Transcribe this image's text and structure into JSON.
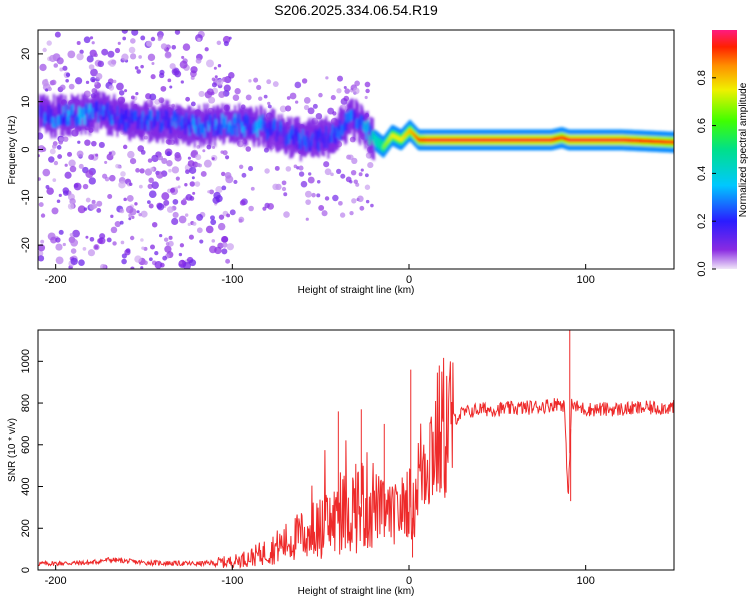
{
  "title": "S206.2025.334.06.54.R19",
  "chart_data": [
    {
      "type": "heatmap",
      "xlabel": "Height of straight line (km)",
      "ylabel": "Frequency (Hz)",
      "xlim": [
        -210,
        150
      ],
      "ylim": [
        -25,
        25
      ],
      "xticks": [
        -200,
        -100,
        0,
        100
      ],
      "yticks": [
        -20,
        -10,
        0,
        10,
        20
      ],
      "colorbar": {
        "label": "Normalized spectral amplitude",
        "range": [
          0,
          1
        ],
        "ticks": [
          0.0,
          0.2,
          0.4,
          0.6,
          0.8
        ]
      },
      "ridge": {
        "description_x": [
          -200,
          -185,
          -175,
          -160,
          -140,
          -120,
          -100,
          -85,
          -70,
          -60,
          -50,
          -40,
          -33,
          -25,
          -20,
          -15,
          -10,
          -5,
          0,
          5,
          10,
          20,
          40,
          60,
          80,
          86,
          90,
          100,
          120,
          150
        ],
        "frequency": [
          7,
          7,
          8,
          6,
          6,
          5,
          5,
          5,
          3,
          2,
          2,
          4,
          7,
          4,
          2,
          0.5,
          3,
          2,
          4,
          2,
          2,
          2,
          2,
          2,
          2,
          2.5,
          2,
          2,
          2,
          1.5
        ],
        "amplitude": [
          0.35,
          0.4,
          0.35,
          0.3,
          0.3,
          0.35,
          0.35,
          0.35,
          0.3,
          0.3,
          0.25,
          0.3,
          0.35,
          0.45,
          0.55,
          0.65,
          0.75,
          0.75,
          0.8,
          0.9,
          0.95,
          0.95,
          0.95,
          0.95,
          0.95,
          0.9,
          0.95,
          0.95,
          0.95,
          0.9
        ]
      }
    },
    {
      "type": "line",
      "xlabel": "Height of straight line (km)",
      "ylabel": "SNR (10 * v/v)",
      "xlim": [
        -210,
        150
      ],
      "ylim": [
        0,
        1150
      ],
      "xticks": [
        -200,
        -100,
        0,
        100
      ],
      "yticks": [
        0,
        200,
        400,
        600,
        800,
        1000
      ],
      "series": [
        {
          "name": "SNR",
          "color": "#ee2a2a",
          "x": [
            -210,
            -180,
            -170,
            -150,
            -120,
            -100,
            -90,
            -80,
            -70,
            -60,
            -50,
            -45,
            -40,
            -35,
            -30,
            -25,
            -20,
            -15,
            -10,
            -5,
            0,
            2,
            5,
            10,
            15,
            20,
            25,
            30,
            40,
            50,
            60,
            70,
            80,
            85,
            88,
            90,
            92,
            95,
            100,
            110,
            120,
            130,
            150
          ],
          "values": [
            30,
            35,
            50,
            35,
            30,
            40,
            60,
            90,
            130,
            170,
            200,
            220,
            250,
            280,
            300,
            330,
            320,
            280,
            260,
            280,
            350,
            250,
            450,
            560,
            620,
            680,
            720,
            750,
            770,
            770,
            775,
            780,
            790,
            800,
            790,
            330,
            790,
            780,
            770,
            770,
            770,
            775,
            780
          ]
        }
      ],
      "spikes": [
        {
          "x": -40,
          "y": 760
        },
        {
          "x": -27,
          "y": 770
        },
        {
          "x": -14,
          "y": 700
        },
        {
          "x": 1,
          "y": 960
        },
        {
          "x": 2,
          "y": 60
        },
        {
          "x": 91,
          "y": 1150
        },
        {
          "x": 91.5,
          "y": 330
        }
      ]
    }
  ]
}
